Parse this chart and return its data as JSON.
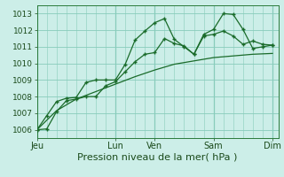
{
  "xlabel": "Pression niveau de la mer( hPa )",
  "bg_color": "#cceee8",
  "grid_color": "#88ccbb",
  "line_color": "#1a6b2a",
  "spine_color": "#2a7a3a",
  "ylim": [
    1005.5,
    1013.5
  ],
  "yticks": [
    1006,
    1007,
    1008,
    1009,
    1010,
    1011,
    1012,
    1013
  ],
  "day_labels": [
    "Jeu",
    "",
    "Lun",
    "Ven",
    "",
    "Sam",
    "",
    "Dim"
  ],
  "day_positions": [
    0,
    2,
    4,
    6,
    7.5,
    9,
    10.5,
    12
  ],
  "major_vert_x": [
    0,
    4,
    6,
    9,
    12
  ],
  "line1_x": [
    0,
    0.5,
    1.0,
    1.5,
    2.0,
    2.5,
    3.0,
    3.5,
    4.0,
    4.5,
    5.0,
    5.5,
    6.0,
    6.5,
    7.0,
    7.5,
    8.0,
    8.5,
    9.0,
    9.5,
    10.0,
    10.5,
    11.0,
    11.5,
    12.0
  ],
  "line1_y": [
    1006.0,
    1006.05,
    1007.1,
    1007.75,
    1007.85,
    1008.0,
    1008.0,
    1008.65,
    1008.9,
    1009.5,
    1010.1,
    1010.55,
    1010.65,
    1011.5,
    1011.2,
    1011.05,
    1010.55,
    1011.65,
    1011.75,
    1011.95,
    1011.65,
    1011.15,
    1011.35,
    1011.15,
    1011.1
  ],
  "line2_x": [
    0,
    0.5,
    1.0,
    1.5,
    2.0,
    2.5,
    3.0,
    3.5,
    4.0,
    4.5,
    5.0,
    5.5,
    6.0,
    6.5,
    7.0,
    7.5,
    8.0,
    8.5,
    9.0,
    9.5,
    10.0,
    10.5,
    11.0,
    11.5,
    12.0
  ],
  "line2_y": [
    1006.0,
    1006.85,
    1007.7,
    1007.9,
    1007.95,
    1008.85,
    1009.0,
    1009.0,
    1009.0,
    1009.95,
    1011.4,
    1011.95,
    1012.45,
    1012.7,
    1011.45,
    1011.0,
    1010.55,
    1011.75,
    1012.05,
    1013.0,
    1012.95,
    1012.05,
    1010.9,
    1011.0,
    1011.1
  ],
  "line3_x": [
    0,
    1,
    2,
    3,
    4,
    5,
    6,
    7,
    8,
    9,
    10,
    11,
    12
  ],
  "line3_y": [
    1006.0,
    1007.15,
    1007.85,
    1008.3,
    1008.75,
    1009.2,
    1009.6,
    1009.95,
    1010.15,
    1010.35,
    1010.45,
    1010.55,
    1010.6
  ],
  "xlim": [
    0,
    12.3
  ],
  "xlabel_fontsize": 8,
  "ytick_fontsize": 6.5,
  "xtick_fontsize": 7
}
